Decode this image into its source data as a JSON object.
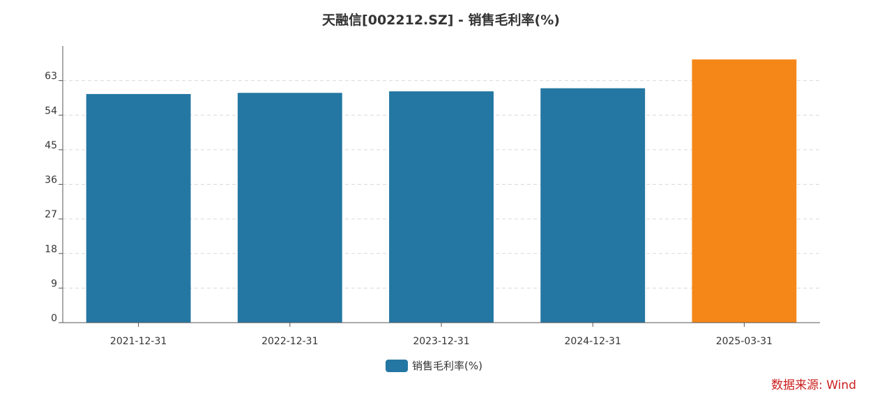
{
  "chart_data": {
    "type": "bar",
    "title": "天融信[002212.SZ] - 销售毛利率(%)",
    "categories": [
      "2021-12-31",
      "2022-12-31",
      "2023-12-31",
      "2024-12-31",
      "2025-03-31"
    ],
    "series": [
      {
        "name": "销售毛利率(%)",
        "values": [
          59.5,
          59.8,
          60.2,
          61.0,
          68.5
        ]
      }
    ],
    "bar_colors": [
      "#2477a2",
      "#2477a2",
      "#2477a2",
      "#2477a2",
      "#f58718"
    ],
    "yticks": [
      0,
      9,
      18,
      27,
      36,
      45,
      54,
      63
    ],
    "ylim": [
      0,
      72
    ],
    "grid": true,
    "legend_position": "bottom-center",
    "xlabel": "",
    "ylabel": ""
  },
  "legend": {
    "label": "销售毛利率(%)",
    "color": "#2477a2"
  },
  "source": "数据来源: Wind"
}
